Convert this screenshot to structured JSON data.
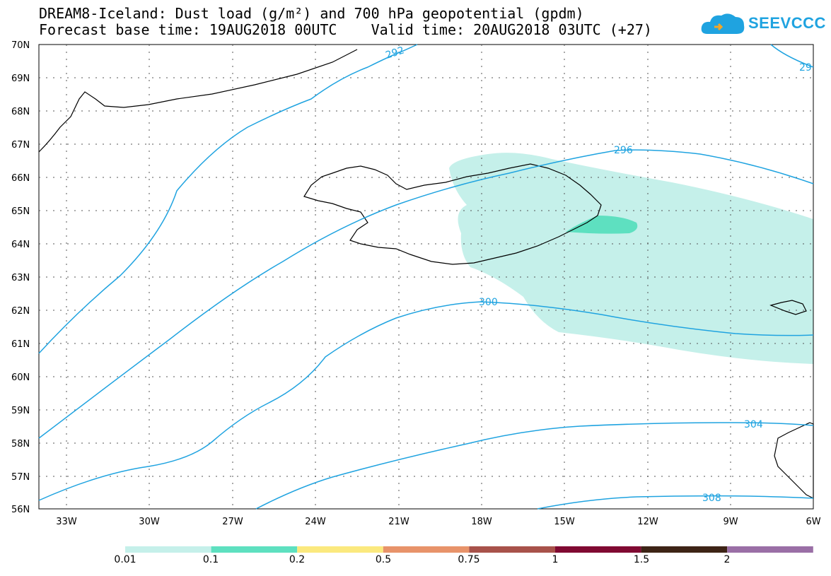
{
  "header": {
    "title_line1": "DREAM8-Iceland: Dust load (g/m²) and 700 hPa geopotential (gpdm)",
    "title_line2": "Forecast base time: 19AUG2018 00UTC    Valid time: 20AUG2018 03UTC (+27)",
    "logo_text": "SEEVCCC",
    "logo_icon": "cloud-icon",
    "logo_color": "#1fa3e0"
  },
  "map": {
    "lat_labels": [
      "70N",
      "69N",
      "68N",
      "67N",
      "66N",
      "65N",
      "64N",
      "63N",
      "62N",
      "61N",
      "60N",
      "59N",
      "58N",
      "57N",
      "56N"
    ],
    "lon_labels": [
      "33W",
      "30W",
      "27W",
      "24W",
      "21W",
      "18W",
      "15W",
      "12W",
      "9W",
      "6W"
    ],
    "lat_range": [
      56,
      70
    ],
    "lon_range": [
      -34.5,
      -6
    ],
    "contour_color": "#1fa3e0",
    "contours": [
      {
        "label": "292"
      },
      {
        "label": "29"
      },
      {
        "label": "296"
      },
      {
        "label": "300"
      },
      {
        "label": "304"
      },
      {
        "label": "308"
      }
    ],
    "dust_colors": {
      "light": "#c5f0ea",
      "medium": "#5ee0c0"
    }
  },
  "colorbar": {
    "labels": [
      "0.01",
      "0.1",
      "0.2",
      "0.5",
      "0.75",
      "1",
      "1.5",
      "2"
    ],
    "colors": [
      "#c5f0ea",
      "#5ee0c0",
      "#fbe97e",
      "#e8936a",
      "#a8524a",
      "#800a32",
      "#3d2416",
      "#9a6fa6"
    ]
  }
}
